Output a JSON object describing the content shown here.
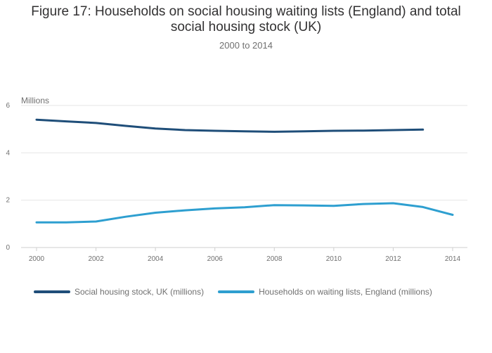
{
  "chart_data": {
    "type": "line",
    "title": "Figure 17: Households on social housing waiting lists (England) and total social housing stock (UK)",
    "subtitle": "2000 to 2014",
    "y_unit_label": "Millions",
    "xlim": [
      2000,
      2014
    ],
    "ylim": [
      0,
      6
    ],
    "x_ticks": [
      "2000",
      "2002",
      "2004",
      "2006",
      "2008",
      "2010",
      "2012",
      "2014"
    ],
    "y_ticks": [
      "0",
      "2",
      "4",
      "6"
    ],
    "grid": true,
    "legend_position": "bottom-left",
    "series": [
      {
        "name": "Social housing stock, UK (millions)",
        "color": "#1f4e79",
        "x": [
          2000,
          2001,
          2002,
          2003,
          2004,
          2005,
          2006,
          2007,
          2008,
          2009,
          2010,
          2011,
          2012,
          2013
        ],
        "values": [
          5.4,
          5.33,
          5.26,
          5.14,
          5.03,
          4.96,
          4.93,
          4.91,
          4.89,
          4.91,
          4.93,
          4.94,
          4.96,
          4.98
        ]
      },
      {
        "name": "Households on waiting lists, England (millions)",
        "color": "#2e9fd0",
        "x": [
          2000,
          2001,
          2002,
          2003,
          2004,
          2005,
          2006,
          2007,
          2008,
          2009,
          2010,
          2011,
          2012,
          2013,
          2014
        ],
        "values": [
          1.06,
          1.06,
          1.1,
          1.3,
          1.47,
          1.57,
          1.65,
          1.7,
          1.79,
          1.78,
          1.76,
          1.84,
          1.87,
          1.71,
          1.38
        ]
      }
    ]
  }
}
